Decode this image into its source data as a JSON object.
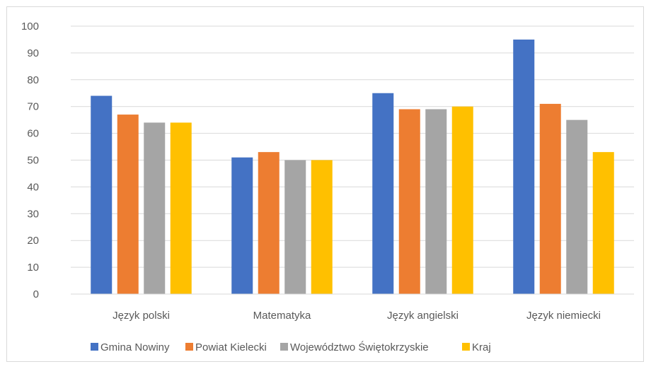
{
  "chart_data": {
    "type": "bar",
    "title": "",
    "xlabel": "",
    "ylabel": "",
    "ylim": [
      0,
      100
    ],
    "yticks": [
      0,
      10,
      20,
      30,
      40,
      50,
      60,
      70,
      80,
      90,
      100
    ],
    "grid": true,
    "legend_position": "bottom",
    "categories": [
      "Język polski",
      "Matematyka",
      "Język angielski",
      "Język niemiecki"
    ],
    "series": [
      {
        "name": "Gmina Nowiny",
        "color": "#4472c4",
        "values": [
          74,
          51,
          75,
          95
        ]
      },
      {
        "name": "Powiat Kielecki",
        "color": "#ed7d31",
        "values": [
          67,
          53,
          69,
          71
        ]
      },
      {
        "name": "Województwo Świętokrzyskie",
        "color": "#a5a5a5",
        "values": [
          64,
          50,
          69,
          65
        ]
      },
      {
        "name": "Kraj",
        "color": "#ffc000",
        "values": [
          64,
          50,
          70,
          53
        ]
      }
    ]
  }
}
